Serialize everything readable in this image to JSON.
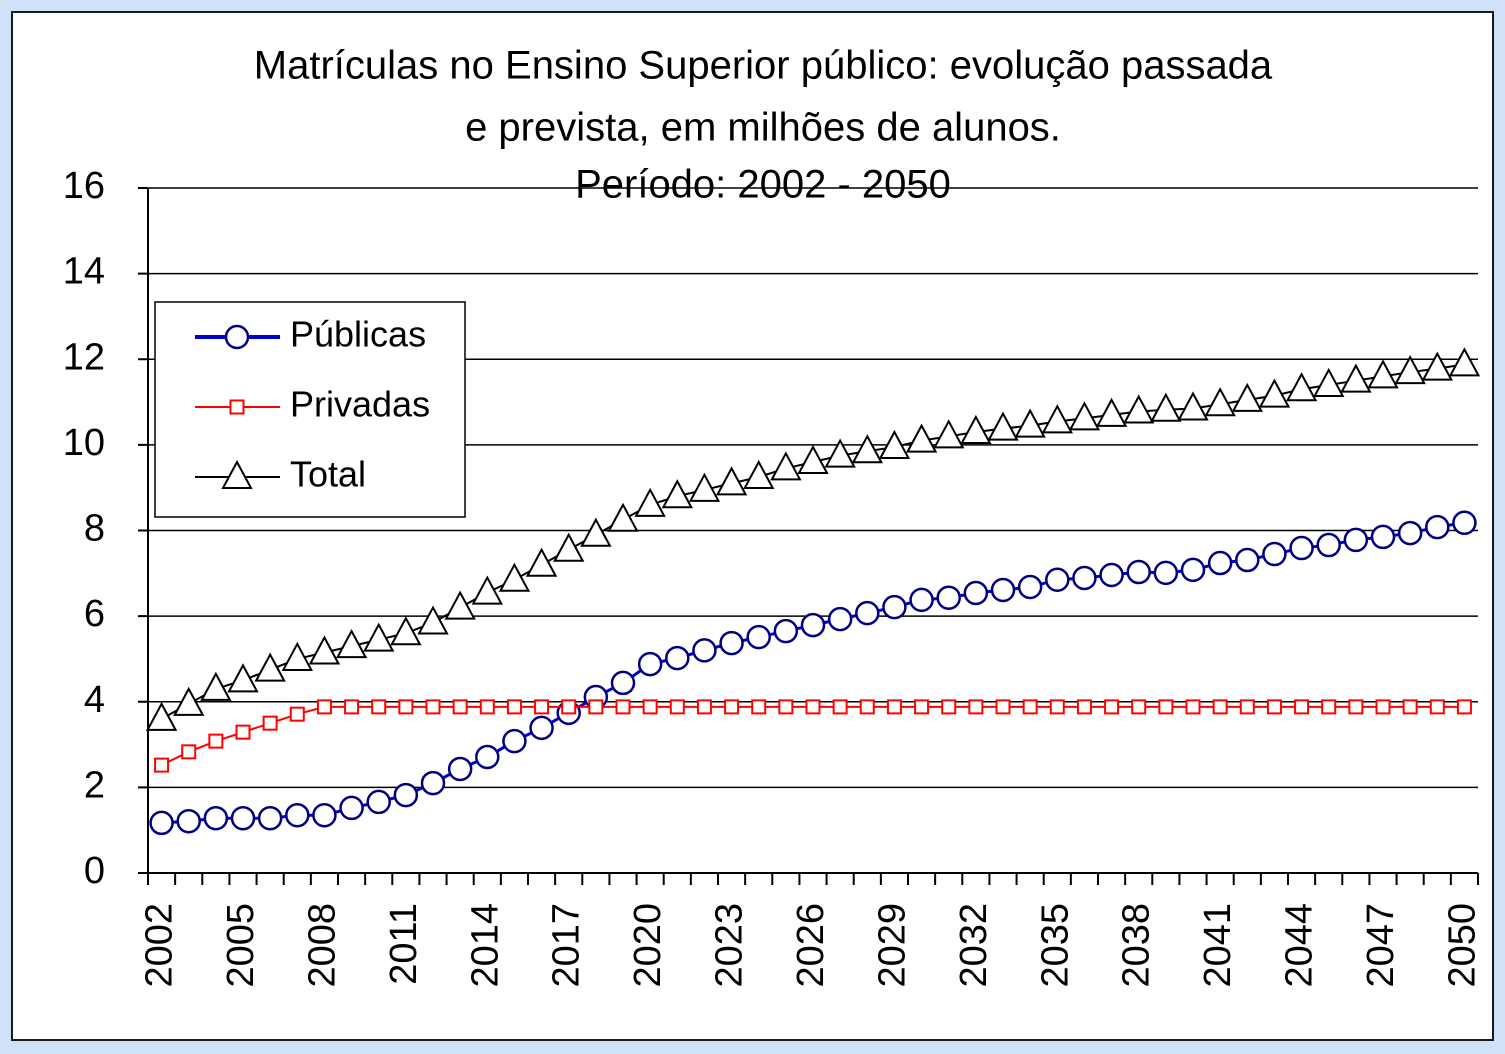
{
  "chart_data": {
    "type": "line",
    "title": [
      "Matrículas no Ensino Superior público: evolução passada",
      "e prevista, em milhões de alunos.",
      "Período: 2002 - 2050"
    ],
    "categories": [
      "2002",
      null,
      null,
      "2005",
      null,
      null,
      "2008",
      null,
      null,
      "2011",
      null,
      null,
      "2014",
      null,
      null,
      "2017",
      null,
      null,
      "2020",
      null,
      null,
      "2023",
      null,
      null,
      "2026",
      null,
      null,
      "2029",
      null,
      null,
      "2032",
      null,
      null,
      "2035",
      null,
      null,
      "2038",
      null,
      null,
      "2041",
      null,
      null,
      "2044",
      null,
      null,
      "2047",
      null,
      null,
      "2050"
    ],
    "series": [
      {
        "name": "Públicas",
        "color": "#0000cc",
        "marker": "circle",
        "values": [
          1.17,
          1.21,
          1.28,
          1.28,
          1.28,
          1.35,
          1.35,
          1.52,
          1.66,
          1.82,
          2.1,
          2.43,
          2.71,
          3.08,
          3.39,
          3.74,
          4.11,
          4.44,
          4.88,
          5.02,
          5.2,
          5.37,
          5.51,
          5.65,
          5.79,
          5.93,
          6.07,
          6.21,
          6.38,
          6.43,
          6.54,
          6.61,
          6.68,
          6.85,
          6.89,
          6.96,
          7.03,
          7.01,
          7.08,
          7.24,
          7.31,
          7.45,
          7.59,
          7.66,
          7.78,
          7.85,
          7.94,
          8.08,
          8.18
        ]
      },
      {
        "name": "Privadas",
        "color": "#ff0000",
        "marker": "square",
        "values": [
          2.52,
          2.83,
          3.08,
          3.29,
          3.5,
          3.71,
          3.88,
          3.88,
          3.88,
          3.88,
          3.88,
          3.88,
          3.88,
          3.88,
          3.88,
          3.88,
          3.88,
          3.88,
          3.88,
          3.88,
          3.88,
          3.88,
          3.88,
          3.88,
          3.88,
          3.88,
          3.88,
          3.88,
          3.88,
          3.88,
          3.88,
          3.88,
          3.88,
          3.88,
          3.88,
          3.88,
          3.88,
          3.88,
          3.88,
          3.88,
          3.88,
          3.88,
          3.88,
          3.88,
          3.88,
          3.88,
          3.88,
          3.88,
          3.88
        ]
      },
      {
        "name": "Total",
        "color": "#000000",
        "marker": "triangle",
        "values": [
          3.6,
          3.95,
          4.3,
          4.5,
          4.75,
          5.0,
          5.15,
          5.3,
          5.45,
          5.6,
          5.85,
          6.2,
          6.55,
          6.85,
          7.2,
          7.55,
          7.9,
          8.25,
          8.6,
          8.8,
          8.95,
          9.1,
          9.25,
          9.45,
          9.6,
          9.75,
          9.85,
          9.95,
          10.1,
          10.2,
          10.3,
          10.38,
          10.45,
          10.55,
          10.62,
          10.7,
          10.78,
          10.82,
          10.85,
          10.95,
          11.05,
          11.15,
          11.3,
          11.4,
          11.5,
          11.6,
          11.7,
          11.78,
          11.88
        ]
      }
    ],
    "ylim": [
      0,
      16
    ],
    "yticks": [
      0,
      2,
      4,
      6,
      8,
      10,
      12,
      14,
      16
    ],
    "grid": true,
    "legend": "upper left"
  }
}
